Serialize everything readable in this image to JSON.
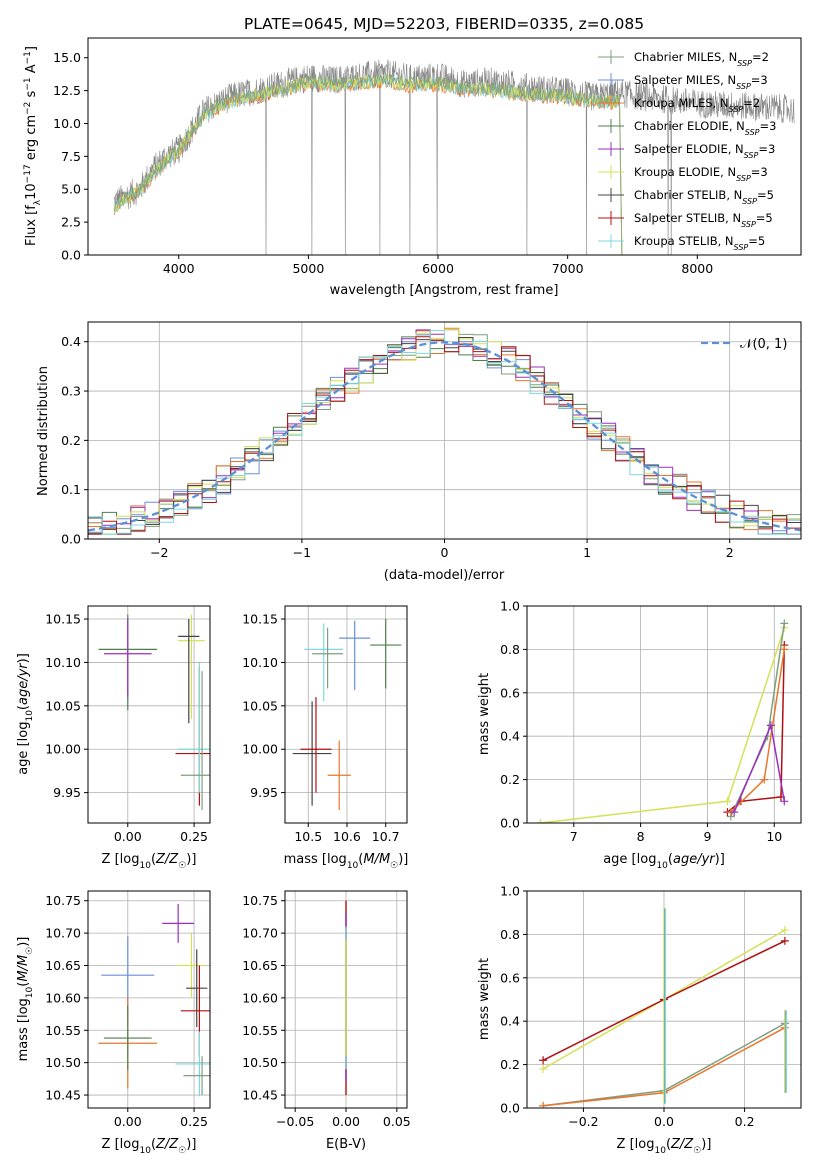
{
  "figure": {
    "title": "PLATE=0645, MJD=52203, FIBERID=0335, z=0.085"
  },
  "chart_data": [
    {
      "id": "spectrum",
      "type": "line",
      "xlabel": "wavelength [Angstrom, rest frame]",
      "ylabel": "Flux [f_λ 10^-17 erg cm^-2 s^-1 A^-1]",
      "xlim": [
        3300,
        8800
      ],
      "ylim": [
        0,
        16.5
      ],
      "xticks": [
        "4000",
        "5000",
        "6000",
        "7000",
        "8000"
      ],
      "yticks": [
        "0.0",
        "2.5",
        "5.0",
        "7.5",
        "10.0",
        "12.5",
        "15.0"
      ],
      "observed_range": [
        3500,
        8750
      ],
      "model_range": [
        3500,
        7400
      ],
      "observed_envelope": {
        "x": [
          3500,
          3600,
          3700,
          3800,
          3900,
          4000,
          4100,
          4200,
          4400,
          4600,
          4800,
          5000,
          5200,
          5400,
          5600,
          5800,
          6000,
          6200,
          6400,
          6600,
          6800,
          7000,
          7200,
          7400,
          7600,
          7800,
          8000,
          8200,
          8400,
          8600,
          8750
        ],
        "y": [
          4.0,
          4.5,
          5.0,
          6.5,
          7.5,
          8.0,
          9.5,
          11.0,
          12.0,
          12.5,
          13.0,
          13.5,
          13.3,
          13.6,
          13.8,
          13.4,
          13.6,
          13.0,
          13.2,
          12.9,
          12.6,
          12.4,
          12.0,
          12.3,
          12.0,
          11.8,
          11.5,
          11.4,
          11.3,
          11.2,
          11.0
        ]
      },
      "model_envelope": {
        "x": [
          3500,
          3600,
          3700,
          3800,
          3900,
          4000,
          4100,
          4200,
          4400,
          4600,
          4800,
          5000,
          5200,
          5400,
          5600,
          5800,
          6000,
          6200,
          6400,
          6600,
          6800,
          7000,
          7200,
          7350
        ],
        "y": [
          3.5,
          4.2,
          4.8,
          6.0,
          7.0,
          7.8,
          9.2,
          10.6,
          11.6,
          12.0,
          12.5,
          13.0,
          12.8,
          13.0,
          13.1,
          12.8,
          12.9,
          12.5,
          12.5,
          12.2,
          12.0,
          11.9,
          11.6,
          11.5
        ]
      },
      "legend_position": "upper right"
    },
    {
      "id": "residual_hist",
      "type": "line",
      "xlabel": "(data-model)/error",
      "ylabel": "Normed distribution",
      "xlim": [
        -2.5,
        2.5
      ],
      "ylim": [
        0,
        0.44
      ],
      "xticks": [
        "−2",
        "−1",
        "0",
        "1",
        "2"
      ],
      "yticks": [
        "0.0",
        "0.1",
        "0.2",
        "0.3",
        "0.4"
      ],
      "bins": [
        -2.5,
        -2.4,
        -2.3,
        -2.2,
        -2.1,
        -2.0,
        -1.9,
        -1.8,
        -1.7,
        -1.6,
        -1.5,
        -1.4,
        -1.3,
        -1.2,
        -1.1,
        -1.0,
        -0.9,
        -0.8,
        -0.7,
        -0.6,
        -0.5,
        -0.4,
        -0.3,
        -0.2,
        -0.1,
        0.0,
        0.1,
        0.2,
        0.3,
        0.4,
        0.5,
        0.6,
        0.7,
        0.8,
        0.9,
        1.0,
        1.1,
        1.2,
        1.3,
        1.4,
        1.5,
        1.6,
        1.7,
        1.8,
        1.9,
        2.0,
        2.1,
        2.2,
        2.3,
        2.4,
        2.5
      ],
      "gaussian": {
        "label": "𝒩(0, 1)",
        "mu": 0,
        "sigma": 1
      },
      "grid": true,
      "legend_position": "upper right"
    },
    {
      "id": "age_vs_Z",
      "type": "scatter",
      "xlabel": "Z [log10(Z/Z☉)]",
      "ylabel": "age [log10(age/yr)]",
      "xlim": [
        -0.15,
        0.31
      ],
      "ylim": [
        9.915,
        10.165
      ],
      "xticks": [
        "0.00",
        "0.25"
      ],
      "yticks": [
        "9.95",
        "10.00",
        "10.05",
        "10.10",
        "10.15"
      ],
      "points": [
        {
          "x": 0.0,
          "y": 10.115,
          "xerr": 0.11,
          "yerr": [
            0.07,
            0.04
          ]
        },
        {
          "x": -0.0,
          "y": 10.11,
          "xerr": 0.09,
          "yerr": [
            0.05,
            0.04
          ]
        },
        {
          "x": 0.24,
          "y": 10.125,
          "xerr": 0.05,
          "yerr": [
            0.09,
            0.03
          ]
        },
        {
          "x": 0.23,
          "y": 10.13,
          "xerr": 0.04,
          "yerr": [
            0.1,
            0.02
          ]
        },
        {
          "x": 0.27,
          "y": 9.995,
          "xerr": 0.09,
          "yerr": [
            0.06,
            0.1
          ]
        },
        {
          "x": 0.27,
          "y": 10.0,
          "xerr": 0.08,
          "yerr": [
            0.05,
            0.1
          ]
        },
        {
          "x": 0.28,
          "y": 9.97,
          "xerr": 0.08,
          "yerr": [
            0.04,
            0.12
          ]
        }
      ],
      "grid": true
    },
    {
      "id": "age_vs_mass",
      "type": "scatter",
      "xlabel": "mass [log10(M/M☉)]",
      "ylabel": "",
      "xlim": [
        10.44,
        10.755
      ],
      "ylim": [
        9.915,
        10.165
      ],
      "xticks": [
        "10.5",
        "10.6",
        "10.7"
      ],
      "yticks": [
        "9.95",
        "10.00",
        "10.05",
        "10.10",
        "10.15"
      ],
      "points": [
        {
          "x": 10.51,
          "y": 9.995,
          "xerr": 0.05,
          "yerr": [
            0.06,
            0.06
          ]
        },
        {
          "x": 10.52,
          "y": 10.0,
          "xerr": 0.04,
          "yerr": [
            0.05,
            0.06
          ]
        },
        {
          "x": 10.54,
          "y": 10.115,
          "xerr": 0.05,
          "yerr": [
            0.06,
            0.03
          ]
        },
        {
          "x": 10.55,
          "y": 10.11,
          "xerr": 0.04,
          "yerr": [
            0.04,
            0.03
          ]
        },
        {
          "x": 10.62,
          "y": 10.128,
          "xerr": 0.04,
          "yerr": [
            0.06,
            0.02
          ]
        },
        {
          "x": 10.58,
          "y": 9.97,
          "xerr": 0.03,
          "yerr": [
            0.04,
            0.04
          ]
        },
        {
          "x": 10.7,
          "y": 10.12,
          "xerr": 0.04,
          "yerr": [
            0.05,
            0.03
          ]
        }
      ],
      "grid": true
    },
    {
      "id": "weight_vs_age",
      "type": "line",
      "xlabel": "age [log10(age/yr)]",
      "ylabel": "mass weight",
      "xlim": [
        6.3,
        10.4
      ],
      "ylim": [
        0,
        1.0
      ],
      "xticks": [
        "7",
        "8",
        "9",
        "10"
      ],
      "yticks": [
        "0.0",
        "0.2",
        "0.4",
        "0.6",
        "0.8",
        "1.0"
      ],
      "series": [
        {
          "x": [
            6.5,
            9.3,
            10.15
          ],
          "y": [
            0.0,
            0.1,
            0.9
          ]
        },
        {
          "x": [
            9.3,
            9.5,
            10.1,
            10.15
          ],
          "y": [
            0.05,
            0.1,
            0.12,
            0.82
          ]
        },
        {
          "x": [
            9.35,
            9.9,
            10.15
          ],
          "y": [
            0.03,
            0.4,
            0.92
          ]
        },
        {
          "x": [
            9.35,
            9.85,
            10.15
          ],
          "y": [
            0.05,
            0.2,
            0.8
          ]
        },
        {
          "x": [
            9.4,
            9.95,
            10.15
          ],
          "y": [
            0.05,
            0.45,
            0.1
          ]
        }
      ],
      "grid": true
    },
    {
      "id": "mass_vs_Z",
      "type": "scatter",
      "xlabel": "Z [log10(Z/Z☉)]",
      "ylabel": "mass [log10(M/M☉)]",
      "xlim": [
        -0.15,
        0.31
      ],
      "ylim": [
        10.43,
        10.765
      ],
      "xticks": [
        "0.00",
        "0.25"
      ],
      "yticks": [
        "10.45",
        "10.50",
        "10.55",
        "10.60",
        "10.65",
        "10.70",
        "10.75"
      ],
      "points": [
        {
          "x": 0.0,
          "y": 10.635,
          "xerr": 0.1,
          "yerr": [
            0.06,
            0.06
          ]
        },
        {
          "x": 0.0,
          "y": 10.53,
          "xerr": 0.11,
          "yerr": [
            0.07,
            0.07
          ]
        },
        {
          "x": 0.0,
          "y": 10.538,
          "xerr": 0.09,
          "yerr": [
            0.05,
            0.05
          ]
        },
        {
          "x": 0.19,
          "y": 10.715,
          "xerr": 0.06,
          "yerr": [
            0.03,
            0.03
          ]
        },
        {
          "x": 0.24,
          "y": 10.65,
          "xerr": 0.05,
          "yerr": [
            0.05,
            0.05
          ]
        },
        {
          "x": 0.26,
          "y": 10.615,
          "xerr": 0.04,
          "yerr": [
            0.06,
            0.06
          ]
        },
        {
          "x": 0.27,
          "y": 10.58,
          "xerr": 0.07,
          "yerr": [
            0.07,
            0.07
          ]
        },
        {
          "x": 0.27,
          "y": 10.498,
          "xerr": 0.09,
          "yerr": [
            0.05,
            0.05
          ]
        },
        {
          "x": 0.28,
          "y": 10.48,
          "xerr": 0.07,
          "yerr": [
            0.03,
            0.03
          ]
        }
      ],
      "grid": true
    },
    {
      "id": "mass_vs_ebv",
      "type": "scatter",
      "xlabel": "E(B-V)",
      "ylabel": "",
      "xlim": [
        -0.06,
        0.06
      ],
      "ylim": [
        10.43,
        10.765
      ],
      "xticks": [
        "−0.05",
        "0.00",
        "0.05"
      ],
      "yticks": [
        "10.45",
        "10.50",
        "10.55",
        "10.60",
        "10.65",
        "10.70",
        "10.75"
      ],
      "points": [
        {
          "x": 0.0,
          "y": 10.6,
          "yerr": [
            0.15,
            0.15
          ]
        }
      ],
      "grid": true
    },
    {
      "id": "weight_vs_Z",
      "type": "line",
      "xlabel": "Z [log10(Z/Z☉)]",
      "ylabel": "mass weight",
      "xlim": [
        -0.34,
        0.34
      ],
      "ylim": [
        0,
        1.0
      ],
      "xticks": [
        "−0.2",
        "0.0",
        "0.2"
      ],
      "yticks": [
        "0.0",
        "0.2",
        "0.4",
        "0.6",
        "0.8",
        "1.0"
      ],
      "series": [
        {
          "x": [
            -0.3,
            0.0,
            0.3
          ],
          "y": [
            0.18,
            0.5,
            0.82
          ]
        },
        {
          "x": [
            -0.3,
            0.0,
            0.3
          ],
          "y": [
            0.22,
            0.5,
            0.77
          ]
        },
        {
          "x": [
            -0.3,
            0.0,
            0.3
          ],
          "y": [
            0.01,
            0.08,
            0.39
          ]
        },
        {
          "x": [
            -0.3,
            0.0,
            0.3
          ],
          "y": [
            0.01,
            0.07,
            0.37
          ]
        }
      ],
      "vlines_x": [
        0.0,
        0.3
      ],
      "grid": true
    }
  ],
  "legend": [
    {
      "label": "Chabrier MILES, N",
      "sub": "SSP",
      "suffix": "=2",
      "color": "#7f9f7f"
    },
    {
      "label": "Salpeter MILES, N",
      "sub": "SSP",
      "suffix": "=3",
      "color": "#6a8fd8"
    },
    {
      "label": "Kroupa MILES, N",
      "sub": "SSP",
      "suffix": "=2",
      "color": "#e8772e"
    },
    {
      "label": "Chabrier ELODIE, N",
      "sub": "SSP",
      "suffix": "=3",
      "color": "#4f7f4f"
    },
    {
      "label": "Salpeter ELODIE, N",
      "sub": "SSP",
      "suffix": "=3",
      "color": "#9b30c0"
    },
    {
      "label": "Kroupa ELODIE, N",
      "sub": "SSP",
      "suffix": "=3",
      "color": "#d4e157"
    },
    {
      "label": "Chabrier STELIB, N",
      "sub": "SSP",
      "suffix": "=5",
      "color": "#444444"
    },
    {
      "label": "Salpeter STELIB, N",
      "sub": "SSP",
      "suffix": "=5",
      "color": "#b01010"
    },
    {
      "label": "Kroupa STELIB, N",
      "sub": "SSP",
      "suffix": "=5",
      "color": "#7fd8e0"
    }
  ],
  "colors": {
    "observed": "#888888",
    "gaussian": "#5b8fd6",
    "grid": "#b0b0b0"
  }
}
